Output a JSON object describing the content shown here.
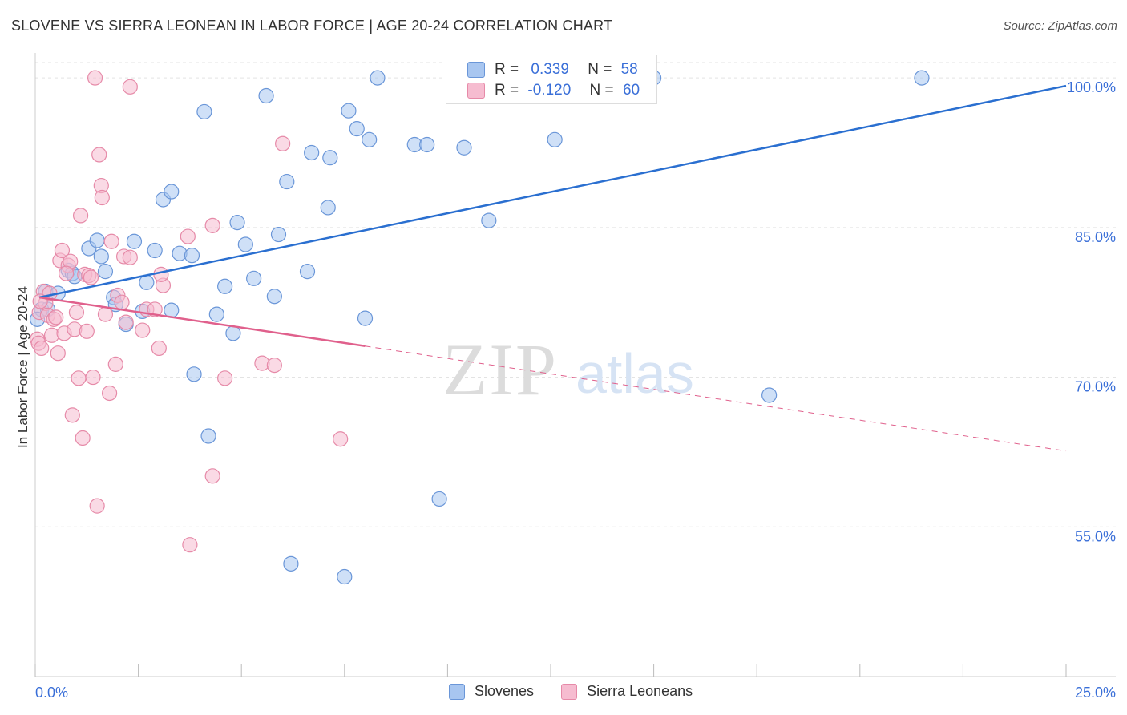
{
  "title": "SLOVENE VS SIERRA LEONEAN IN LABOR FORCE | AGE 20-24 CORRELATION CHART",
  "source": "Source: ZipAtlas.com",
  "watermark": {
    "zip": "ZIP",
    "atlas": "atlas"
  },
  "legend_box": {
    "rows": [
      {
        "r_label": "R =",
        "r_value": "0.339",
        "n_label": "N =",
        "n_value": "58"
      },
      {
        "r_label": "R =",
        "r_value": "-0.120",
        "n_label": "N =",
        "n_value": "60"
      }
    ]
  },
  "colors": {
    "slovenes_fill": "#a8c6f0",
    "slovenes_stroke": "#6a96d8",
    "slovenes_line": "#2a6fd0",
    "sierra_fill": "#f6bcd0",
    "sierra_stroke": "#e68aa8",
    "sierra_line": "#e0608c",
    "axis_label": "#3a6fd8",
    "grid": "#e3e3e3"
  },
  "chart_data": {
    "type": "scatter",
    "title": "SLOVENE VS SIERRA LEONEAN IN LABOR FORCE | AGE 20-24 CORRELATION CHART",
    "xlabel": "",
    "ylabel": "In Labor Force | Age 20-24",
    "xlim": [
      0,
      25
    ],
    "ylim": [
      40,
      102.5
    ],
    "x_tick_labels": [
      "0.0%",
      "25.0%"
    ],
    "y_ticks": [
      55,
      70,
      85,
      100
    ],
    "y_tick_labels": [
      "55.0%",
      "70.0%",
      "85.0%",
      "100.0%"
    ],
    "grid": true,
    "legend_position": "bottom",
    "series": [
      {
        "name": "Slovenes",
        "r": 0.339,
        "n": 58,
        "trend": {
          "x": [
            0.1,
            25
          ],
          "y": [
            78.0,
            99.2
          ],
          "dashed_from": null
        },
        "points": [
          [
            0.15,
            76.8
          ],
          [
            0.25,
            78.6
          ],
          [
            0.3,
            76.8
          ],
          [
            0.55,
            78.4
          ],
          [
            0.8,
            80.7
          ],
          [
            0.9,
            80.4
          ],
          [
            0.95,
            80.1
          ],
          [
            1.3,
            82.9
          ],
          [
            1.5,
            83.7
          ],
          [
            1.6,
            82.1
          ],
          [
            1.7,
            80.6
          ],
          [
            1.9,
            78.0
          ],
          [
            1.95,
            77.3
          ],
          [
            2.2,
            75.3
          ],
          [
            2.4,
            83.6
          ],
          [
            2.6,
            76.6
          ],
          [
            2.7,
            79.5
          ],
          [
            2.9,
            82.7
          ],
          [
            3.1,
            87.8
          ],
          [
            3.3,
            88.6
          ],
          [
            3.3,
            76.7
          ],
          [
            3.5,
            82.4
          ],
          [
            3.8,
            82.2
          ],
          [
            3.85,
            70.3
          ],
          [
            4.1,
            96.6
          ],
          [
            4.2,
            64.1
          ],
          [
            4.4,
            76.3
          ],
          [
            4.6,
            79.1
          ],
          [
            4.8,
            74.4
          ],
          [
            4.9,
            85.5
          ],
          [
            5.1,
            83.3
          ],
          [
            5.3,
            79.9
          ],
          [
            5.6,
            98.2
          ],
          [
            5.8,
            78.1
          ],
          [
            5.9,
            84.3
          ],
          [
            6.1,
            89.6
          ],
          [
            6.2,
            51.3
          ],
          [
            6.6,
            80.6
          ],
          [
            6.7,
            92.5
          ],
          [
            7.1,
            87.0
          ],
          [
            7.15,
            92.0
          ],
          [
            7.5,
            50.0
          ],
          [
            7.6,
            96.7
          ],
          [
            7.8,
            94.9
          ],
          [
            8.0,
            75.9
          ],
          [
            8.1,
            93.8
          ],
          [
            8.3,
            100.0
          ],
          [
            9.2,
            93.3
          ],
          [
            9.5,
            93.3
          ],
          [
            9.8,
            57.8
          ],
          [
            10.4,
            93.0
          ],
          [
            11.0,
            85.7
          ],
          [
            12.2,
            100.0
          ],
          [
            12.6,
            93.8
          ],
          [
            15.0,
            100.0
          ],
          [
            17.8,
            68.2
          ],
          [
            21.5,
            100.0
          ],
          [
            0.05,
            75.8
          ]
        ]
      },
      {
        "name": "Sierra Leoneans",
        "r": -0.12,
        "n": 60,
        "trend": {
          "x": [
            0.1,
            25
          ],
          "y": [
            78.0,
            62.6
          ],
          "dashed_from": 8.0
        },
        "points": [
          [
            0.05,
            73.8
          ],
          [
            0.08,
            73.4
          ],
          [
            0.1,
            76.5
          ],
          [
            0.15,
            72.9
          ],
          [
            0.2,
            78.6
          ],
          [
            0.25,
            77.4
          ],
          [
            0.3,
            76.2
          ],
          [
            0.35,
            78.4
          ],
          [
            0.4,
            74.2
          ],
          [
            0.45,
            75.8
          ],
          [
            0.5,
            76.0
          ],
          [
            0.55,
            72.4
          ],
          [
            0.6,
            81.7
          ],
          [
            0.65,
            82.7
          ],
          [
            0.7,
            74.4
          ],
          [
            0.8,
            81.2
          ],
          [
            0.85,
            81.6
          ],
          [
            0.9,
            66.2
          ],
          [
            0.95,
            74.8
          ],
          [
            1.0,
            76.5
          ],
          [
            1.05,
            69.9
          ],
          [
            1.1,
            86.2
          ],
          [
            1.15,
            63.9
          ],
          [
            1.2,
            80.3
          ],
          [
            1.3,
            80.2
          ],
          [
            1.35,
            80.0
          ],
          [
            1.4,
            70.0
          ],
          [
            1.45,
            100.0
          ],
          [
            1.5,
            57.1
          ],
          [
            1.55,
            92.3
          ],
          [
            1.6,
            89.2
          ],
          [
            1.62,
            88.0
          ],
          [
            1.7,
            76.3
          ],
          [
            1.8,
            68.4
          ],
          [
            1.85,
            83.6
          ],
          [
            1.95,
            71.3
          ],
          [
            2.0,
            78.2
          ],
          [
            2.1,
            77.5
          ],
          [
            2.15,
            82.1
          ],
          [
            2.2,
            75.5
          ],
          [
            2.3,
            82.0
          ],
          [
            2.3,
            99.1
          ],
          [
            2.6,
            74.7
          ],
          [
            2.7,
            76.8
          ],
          [
            2.9,
            76.8
          ],
          [
            3.0,
            72.9
          ],
          [
            3.1,
            79.2
          ],
          [
            3.05,
            80.3
          ],
          [
            3.7,
            84.1
          ],
          [
            3.75,
            53.2
          ],
          [
            4.3,
            85.2
          ],
          [
            4.3,
            60.1
          ],
          [
            4.6,
            69.9
          ],
          [
            5.5,
            71.4
          ],
          [
            5.8,
            71.2
          ],
          [
            6.0,
            93.4
          ],
          [
            7.4,
            63.8
          ],
          [
            0.12,
            77.6
          ],
          [
            0.75,
            80.4
          ],
          [
            1.25,
            74.6
          ]
        ]
      }
    ]
  },
  "legend_bottom": [
    {
      "label": "Slovenes"
    },
    {
      "label": "Sierra Leoneans"
    }
  ]
}
